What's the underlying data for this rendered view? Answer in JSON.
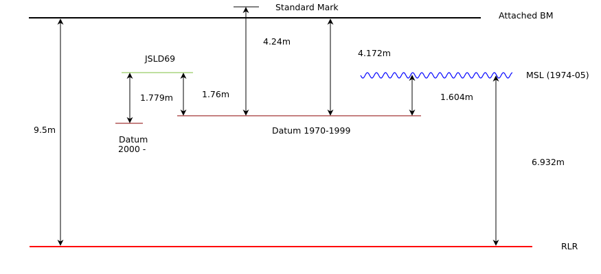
{
  "labels": {
    "standard_mark": "Standard Mark",
    "attached_bm": "Attached BM",
    "jsld69": "JSLD69",
    "msl": "MSL (1974-05)",
    "datum_2000_line1": "Datum",
    "datum_2000_line2": "2000 -",
    "datum_1970_1999": "Datum 1970-1999",
    "rlr": "RLR"
  },
  "measurements": {
    "bm_to_rlr": "9.5m",
    "mark_to_datum": "4.24m",
    "bm_to_datum": "4.172m",
    "jsld_to_datum2000": "1.779m",
    "jsld_to_datum1970": "1.76m",
    "msl_to_datum": "1.604m",
    "msl_to_rlr": "6.932m"
  },
  "colors": {
    "bm_line": "#000000",
    "rlr_line": "#ff0000",
    "jsld_line": "#7fbf3f",
    "datum_line": "#8b0000",
    "msl_wave": "#0000ff",
    "arrows": "#000000"
  }
}
